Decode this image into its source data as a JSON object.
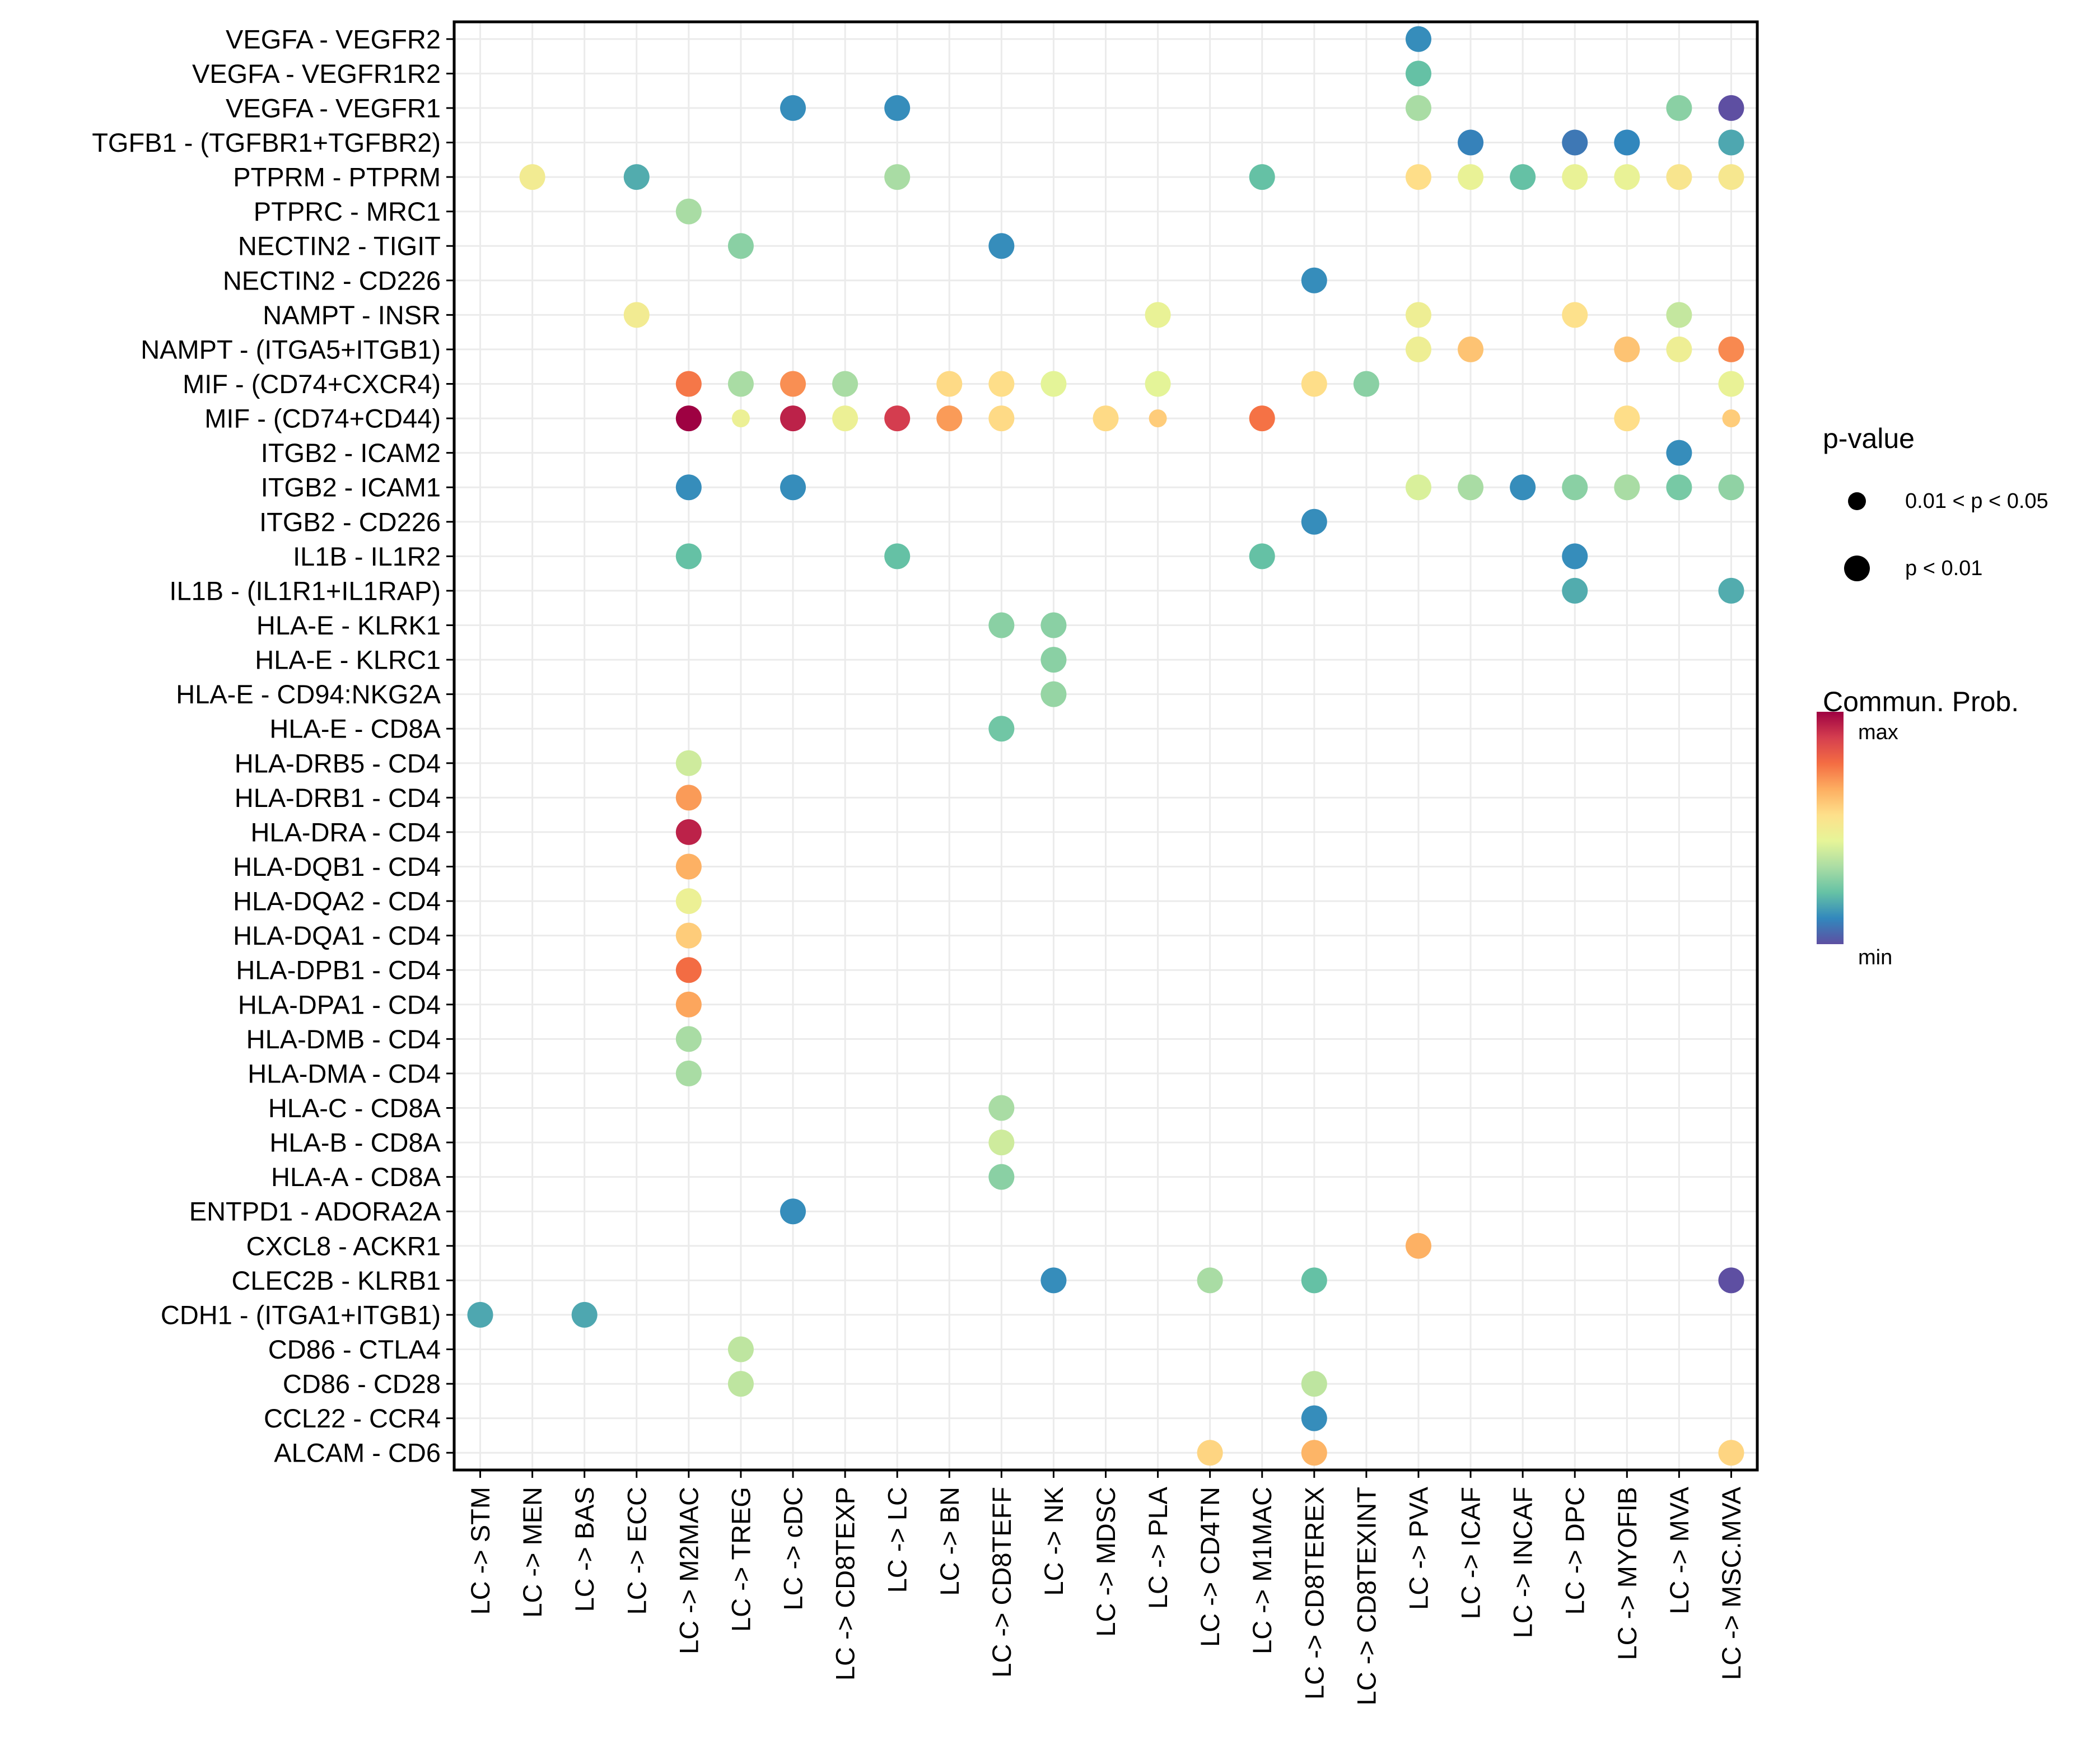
{
  "chart_data": {
    "type": "scatter",
    "subtype": "dot-matrix",
    "title": "",
    "xlabel": "",
    "ylabel": "",
    "grid": true,
    "x_categories": [
      "LC -> STM",
      "LC -> MEN",
      "LC -> BAS",
      "LC -> ECC",
      "LC -> M2MAC",
      "LC -> TREG",
      "LC -> cDC",
      "LC -> CD8TEXP",
      "LC -> LC",
      "LC -> BN",
      "LC -> CD8TEFF",
      "LC -> NK",
      "LC -> MDSC",
      "LC -> PLA",
      "LC -> CD4TN",
      "LC -> M1MAC",
      "LC -> CD8TEREX",
      "LC -> CD8TEXINT",
      "LC -> PVA",
      "LC -> ICAF",
      "LC -> INCAF",
      "LC -> DPC",
      "LC -> MYOFIB",
      "LC -> MVA",
      "LC -> MSC.MVA"
    ],
    "y_categories_top_to_bottom": [
      "VEGFA - VEGFR2",
      "VEGFA - VEGFR1R2",
      "VEGFA - VEGFR1",
      "TGFB1 - (TGFBR1+TGFBR2)",
      "PTPRM - PTPRM",
      "PTPRC - MRC1",
      "NECTIN2 - TIGIT",
      "NECTIN2 - CD226",
      "NAMPT - INSR",
      "NAMPT - (ITGA5+ITGB1)",
      "MIF - (CD74+CXCR4)",
      "MIF - (CD74+CD44)",
      "ITGB2 - ICAM2",
      "ITGB2 - ICAM1",
      "ITGB2 - CD226",
      "IL1B - IL1R2",
      "IL1B - (IL1R1+IL1RAP)",
      "HLA-E - KLRK1",
      "HLA-E - KLRC1",
      "HLA-E - CD94:NKG2A",
      "HLA-E - CD8A",
      "HLA-DRB5 - CD4",
      "HLA-DRB1 - CD4",
      "HLA-DRA - CD4",
      "HLA-DQB1 - CD4",
      "HLA-DQA2 - CD4",
      "HLA-DQA1 - CD4",
      "HLA-DPB1 - CD4",
      "HLA-DPA1 - CD4",
      "HLA-DMB - CD4",
      "HLA-DMA - CD4",
      "HLA-C - CD8A",
      "HLA-B - CD8A",
      "HLA-A - CD8A",
      "ENTPD1 - ADORA2A",
      "CXCL8 - ACKR1",
      "CLEC2B - KLRB1",
      "CDH1 - (ITGA1+ITGB1)",
      "CD86 - CTLA4",
      "CD86 - CD28",
      "CCL22 - CCR4",
      "ALCAM - CD6"
    ],
    "value_scale": "relative communication probability, 0 = min, 1 = max",
    "points": [
      {
        "y": "VEGFA - VEGFR2",
        "x": "LC -> PVA",
        "prob": 0.12,
        "p": "p < 0.01"
      },
      {
        "y": "VEGFA - VEGFR1R2",
        "x": "LC -> PVA",
        "prob": 0.22,
        "p": "p < 0.01"
      },
      {
        "y": "VEGFA - VEGFR1",
        "x": "LC -> cDC",
        "prob": 0.12,
        "p": "p < 0.01"
      },
      {
        "y": "VEGFA - VEGFR1",
        "x": "LC -> LC",
        "prob": 0.12,
        "p": "p < 0.01"
      },
      {
        "y": "VEGFA - VEGFR1",
        "x": "LC -> PVA",
        "prob": 0.33,
        "p": "p < 0.01"
      },
      {
        "y": "VEGFA - VEGFR1",
        "x": "LC -> MVA",
        "prob": 0.28,
        "p": "p < 0.01"
      },
      {
        "y": "VEGFA - VEGFR1",
        "x": "LC -> MSC.MVA",
        "prob": 0.0,
        "p": "p < 0.01"
      },
      {
        "y": "TGFB1 - (TGFBR1+TGFBR2)",
        "x": "LC -> ICAF",
        "prob": 0.1,
        "p": "p < 0.01"
      },
      {
        "y": "TGFB1 - (TGFBR1+TGFBR2)",
        "x": "LC -> DPC",
        "prob": 0.08,
        "p": "p < 0.01"
      },
      {
        "y": "TGFB1 - (TGFBR1+TGFBR2)",
        "x": "LC -> MYOFIB",
        "prob": 0.11,
        "p": "p < 0.01"
      },
      {
        "y": "TGFB1 - (TGFBR1+TGFBR2)",
        "x": "LC -> MSC.MVA",
        "prob": 0.17,
        "p": "p < 0.01"
      },
      {
        "y": "PTPRM - PTPRM",
        "x": "LC -> MEN",
        "prob": 0.5,
        "p": "p < 0.01"
      },
      {
        "y": "PTPRM - PTPRM",
        "x": "LC -> ECC",
        "prob": 0.18,
        "p": "p < 0.01"
      },
      {
        "y": "PTPRM - PTPRM",
        "x": "LC -> LC",
        "prob": 0.33,
        "p": "p < 0.01"
      },
      {
        "y": "PTPRM - PTPRM",
        "x": "LC -> M1MAC",
        "prob": 0.22,
        "p": "p < 0.01"
      },
      {
        "y": "PTPRM - PTPRM",
        "x": "LC -> PVA",
        "prob": 0.56,
        "p": "p < 0.01"
      },
      {
        "y": "PTPRM - PTPRM",
        "x": "LC -> ICAF",
        "prob": 0.46,
        "p": "p < 0.01"
      },
      {
        "y": "PTPRM - PTPRM",
        "x": "LC -> INCAF",
        "prob": 0.22,
        "p": "p < 0.01"
      },
      {
        "y": "PTPRM - PTPRM",
        "x": "LC -> DPC",
        "prob": 0.46,
        "p": "p < 0.01"
      },
      {
        "y": "PTPRM - PTPRM",
        "x": "LC -> MYOFIB",
        "prob": 0.46,
        "p": "p < 0.01"
      },
      {
        "y": "PTPRM - PTPRM",
        "x": "LC -> MVA",
        "prob": 0.53,
        "p": "p < 0.01"
      },
      {
        "y": "PTPRM - PTPRM",
        "x": "LC -> MSC.MVA",
        "prob": 0.52,
        "p": "p < 0.01"
      },
      {
        "y": "PTPRC - MRC1",
        "x": "LC -> M2MAC",
        "prob": 0.33,
        "p": "p < 0.01"
      },
      {
        "y": "NECTIN2 - TIGIT",
        "x": "LC -> TREG",
        "prob": 0.28,
        "p": "p < 0.01"
      },
      {
        "y": "NECTIN2 - TIGIT",
        "x": "LC -> CD8TEFF",
        "prob": 0.12,
        "p": "p < 0.01"
      },
      {
        "y": "NECTIN2 - CD226",
        "x": "LC -> CD8TEREX",
        "prob": 0.12,
        "p": "p < 0.01"
      },
      {
        "y": "NAMPT - INSR",
        "x": "LC -> ECC",
        "prob": 0.5,
        "p": "p < 0.01"
      },
      {
        "y": "NAMPT - INSR",
        "x": "LC -> PLA",
        "prob": 0.46,
        "p": "p < 0.01"
      },
      {
        "y": "NAMPT - INSR",
        "x": "LC -> PVA",
        "prob": 0.48,
        "p": "p < 0.01"
      },
      {
        "y": "NAMPT - INSR",
        "x": "LC -> DPC",
        "prob": 0.55,
        "p": "p < 0.01"
      },
      {
        "y": "NAMPT - INSR",
        "x": "LC -> MVA",
        "prob": 0.38,
        "p": "p < 0.01"
      },
      {
        "y": "NAMPT - (ITGA5+ITGB1)",
        "x": "LC -> PVA",
        "prob": 0.48,
        "p": "p < 0.01"
      },
      {
        "y": "NAMPT - (ITGA5+ITGB1)",
        "x": "LC -> ICAF",
        "prob": 0.62,
        "p": "p < 0.01"
      },
      {
        "y": "NAMPT - (ITGA5+ITGB1)",
        "x": "LC -> MYOFIB",
        "prob": 0.62,
        "p": "p < 0.01"
      },
      {
        "y": "NAMPT - (ITGA5+ITGB1)",
        "x": "LC -> MVA",
        "prob": 0.48,
        "p": "p < 0.01"
      },
      {
        "y": "NAMPT - (ITGA5+ITGB1)",
        "x": "LC -> MSC.MVA",
        "prob": 0.73,
        "p": "p < 0.01"
      },
      {
        "y": "MIF - (CD74+CXCR4)",
        "x": "LC -> M2MAC",
        "prob": 0.76,
        "p": "p < 0.01"
      },
      {
        "y": "MIF - (CD74+CXCR4)",
        "x": "LC -> TREG",
        "prob": 0.33,
        "p": "p < 0.01"
      },
      {
        "y": "MIF - (CD74+CXCR4)",
        "x": "LC -> cDC",
        "prob": 0.72,
        "p": "p < 0.01"
      },
      {
        "y": "MIF - (CD74+CXCR4)",
        "x": "LC -> CD8TEXP",
        "prob": 0.33,
        "p": "p < 0.01"
      },
      {
        "y": "MIF - (CD74+CXCR4)",
        "x": "LC -> BN",
        "prob": 0.57,
        "p": "p < 0.01"
      },
      {
        "y": "MIF - (CD74+CXCR4)",
        "x": "LC -> CD8TEFF",
        "prob": 0.56,
        "p": "p < 0.01"
      },
      {
        "y": "MIF - (CD74+CXCR4)",
        "x": "LC -> NK",
        "prob": 0.44,
        "p": "p < 0.01"
      },
      {
        "y": "MIF - (CD74+CXCR4)",
        "x": "LC -> PLA",
        "prob": 0.44,
        "p": "p < 0.01"
      },
      {
        "y": "MIF - (CD74+CXCR4)",
        "x": "LC -> CD8TEREX",
        "prob": 0.56,
        "p": "p < 0.01"
      },
      {
        "y": "MIF - (CD74+CXCR4)",
        "x": "LC -> CD8TEXINT",
        "prob": 0.28,
        "p": "p < 0.01"
      },
      {
        "y": "MIF - (CD74+CXCR4)",
        "x": "LC -> MSC.MVA",
        "prob": 0.46,
        "p": "p < 0.01"
      },
      {
        "y": "MIF - (CD74+CD44)",
        "x": "LC -> M2MAC",
        "prob": 1.0,
        "p": "p < 0.01"
      },
      {
        "y": "MIF - (CD74+CD44)",
        "x": "LC -> TREG",
        "prob": 0.47,
        "p": "0.01 < p < 0.05"
      },
      {
        "y": "MIF - (CD74+CD44)",
        "x": "LC -> cDC",
        "prob": 0.94,
        "p": "p < 0.01"
      },
      {
        "y": "MIF - (CD74+CD44)",
        "x": "LC -> CD8TEXP",
        "prob": 0.47,
        "p": "p < 0.01"
      },
      {
        "y": "MIF - (CD74+CD44)",
        "x": "LC -> LC",
        "prob": 0.89,
        "p": "p < 0.01"
      },
      {
        "y": "MIF - (CD74+CD44)",
        "x": "LC -> BN",
        "prob": 0.7,
        "p": "p < 0.01"
      },
      {
        "y": "MIF - (CD74+CD44)",
        "x": "LC -> CD8TEFF",
        "prob": 0.57,
        "p": "p < 0.01"
      },
      {
        "y": "MIF - (CD74+CD44)",
        "x": "LC -> MDSC",
        "prob": 0.57,
        "p": "p < 0.01"
      },
      {
        "y": "MIF - (CD74+CD44)",
        "x": "LC -> PLA",
        "prob": 0.6,
        "p": "0.01 < p < 0.05"
      },
      {
        "y": "MIF - (CD74+CD44)",
        "x": "LC -> M1MAC",
        "prob": 0.77,
        "p": "p < 0.01"
      },
      {
        "y": "MIF - (CD74+CD44)",
        "x": "LC -> MYOFIB",
        "prob": 0.56,
        "p": "p < 0.01"
      },
      {
        "y": "MIF - (CD74+CD44)",
        "x": "LC -> MSC.MVA",
        "prob": 0.6,
        "p": "0.01 < p < 0.05"
      },
      {
        "y": "ITGB2 - ICAM2",
        "x": "LC -> MVA",
        "prob": 0.12,
        "p": "p < 0.01"
      },
      {
        "y": "ITGB2 - ICAM1",
        "x": "LC -> M2MAC",
        "prob": 0.12,
        "p": "p < 0.01"
      },
      {
        "y": "ITGB2 - ICAM1",
        "x": "LC -> cDC",
        "prob": 0.12,
        "p": "p < 0.01"
      },
      {
        "y": "ITGB2 - ICAM1",
        "x": "LC -> PVA",
        "prob": 0.42,
        "p": "p < 0.01"
      },
      {
        "y": "ITGB2 - ICAM1",
        "x": "LC -> ICAF",
        "prob": 0.33,
        "p": "p < 0.01"
      },
      {
        "y": "ITGB2 - ICAM1",
        "x": "LC -> INCAF",
        "prob": 0.12,
        "p": "p < 0.01"
      },
      {
        "y": "ITGB2 - ICAM1",
        "x": "LC -> DPC",
        "prob": 0.28,
        "p": "p < 0.01"
      },
      {
        "y": "ITGB2 - ICAM1",
        "x": "LC -> MYOFIB",
        "prob": 0.33,
        "p": "p < 0.01"
      },
      {
        "y": "ITGB2 - ICAM1",
        "x": "LC -> MVA",
        "prob": 0.25,
        "p": "p < 0.01"
      },
      {
        "y": "ITGB2 - ICAM1",
        "x": "LC -> MSC.MVA",
        "prob": 0.29,
        "p": "p < 0.01"
      },
      {
        "y": "ITGB2 - CD226",
        "x": "LC -> CD8TEREX",
        "prob": 0.12,
        "p": "p < 0.01"
      },
      {
        "y": "IL1B - IL1R2",
        "x": "LC -> M2MAC",
        "prob": 0.22,
        "p": "p < 0.01"
      },
      {
        "y": "IL1B - IL1R2",
        "x": "LC -> LC",
        "prob": 0.22,
        "p": "p < 0.01"
      },
      {
        "y": "IL1B - IL1R2",
        "x": "LC -> M1MAC",
        "prob": 0.22,
        "p": "p < 0.01"
      },
      {
        "y": "IL1B - IL1R2",
        "x": "LC -> DPC",
        "prob": 0.12,
        "p": "p < 0.01"
      },
      {
        "y": "IL1B - (IL1R1+IL1RAP)",
        "x": "LC -> DPC",
        "prob": 0.18,
        "p": "p < 0.01"
      },
      {
        "y": "IL1B - (IL1R1+IL1RAP)",
        "x": "LC -> MSC.MVA",
        "prob": 0.18,
        "p": "p < 0.01"
      },
      {
        "y": "HLA-E - KLRK1",
        "x": "LC -> CD8TEFF",
        "prob": 0.28,
        "p": "p < 0.01"
      },
      {
        "y": "HLA-E - KLRK1",
        "x": "LC -> NK",
        "prob": 0.28,
        "p": "p < 0.01"
      },
      {
        "y": "HLA-E - KLRC1",
        "x": "LC -> NK",
        "prob": 0.28,
        "p": "p < 0.01"
      },
      {
        "y": "HLA-E - CD94:NKG2A",
        "x": "LC -> NK",
        "prob": 0.3,
        "p": "p < 0.01"
      },
      {
        "y": "HLA-E - CD8A",
        "x": "LC -> CD8TEFF",
        "prob": 0.24,
        "p": "p < 0.01"
      },
      {
        "y": "HLA-DRB5 - CD4",
        "x": "LC -> M2MAC",
        "prob": 0.4,
        "p": "p < 0.01"
      },
      {
        "y": "HLA-DRB1 - CD4",
        "x": "LC -> M2MAC",
        "prob": 0.7,
        "p": "p < 0.01"
      },
      {
        "y": "HLA-DRA - CD4",
        "x": "LC -> M2MAC",
        "prob": 0.94,
        "p": "p < 0.01"
      },
      {
        "y": "HLA-DQB1 - CD4",
        "x": "LC -> M2MAC",
        "prob": 0.66,
        "p": "p < 0.01"
      },
      {
        "y": "HLA-DQA2 - CD4",
        "x": "LC -> M2MAC",
        "prob": 0.47,
        "p": "p < 0.01"
      },
      {
        "y": "HLA-DQA1 - CD4",
        "x": "LC -> M2MAC",
        "prob": 0.6,
        "p": "p < 0.01"
      },
      {
        "y": "HLA-DPB1 - CD4",
        "x": "LC -> M2MAC",
        "prob": 0.78,
        "p": "p < 0.01"
      },
      {
        "y": "HLA-DPA1 - CD4",
        "x": "LC -> M2MAC",
        "prob": 0.68,
        "p": "p < 0.01"
      },
      {
        "y": "HLA-DMB - CD4",
        "x": "LC -> M2MAC",
        "prob": 0.33,
        "p": "p < 0.01"
      },
      {
        "y": "HLA-DMA - CD4",
        "x": "LC -> M2MAC",
        "prob": 0.33,
        "p": "p < 0.01"
      },
      {
        "y": "HLA-C - CD8A",
        "x": "LC -> CD8TEFF",
        "prob": 0.33,
        "p": "p < 0.01"
      },
      {
        "y": "HLA-B - CD8A",
        "x": "LC -> CD8TEFF",
        "prob": 0.4,
        "p": "p < 0.01"
      },
      {
        "y": "HLA-A - CD8A",
        "x": "LC -> CD8TEFF",
        "prob": 0.28,
        "p": "p < 0.01"
      },
      {
        "y": "ENTPD1 - ADORA2A",
        "x": "LC -> cDC",
        "prob": 0.12,
        "p": "p < 0.01"
      },
      {
        "y": "CXCL8 - ACKR1",
        "x": "LC -> PVA",
        "prob": 0.66,
        "p": "p < 0.01"
      },
      {
        "y": "CLEC2B - KLRB1",
        "x": "LC -> NK",
        "prob": 0.12,
        "p": "p < 0.01"
      },
      {
        "y": "CLEC2B - KLRB1",
        "x": "LC -> CD4TN",
        "prob": 0.33,
        "p": "p < 0.01"
      },
      {
        "y": "CLEC2B - KLRB1",
        "x": "LC -> CD8TEREX",
        "prob": 0.22,
        "p": "p < 0.01"
      },
      {
        "y": "CLEC2B - KLRB1",
        "x": "LC -> MSC.MVA",
        "prob": 0.0,
        "p": "p < 0.01"
      },
      {
        "y": "CDH1 - (ITGA1+ITGB1)",
        "x": "LC -> STM",
        "prob": 0.17,
        "p": "p < 0.01"
      },
      {
        "y": "CDH1 - (ITGA1+ITGB1)",
        "x": "LC -> BAS",
        "prob": 0.17,
        "p": "p < 0.01"
      },
      {
        "y": "CD86 - CTLA4",
        "x": "LC -> TREG",
        "prob": 0.37,
        "p": "p < 0.01"
      },
      {
        "y": "CD86 - CD28",
        "x": "LC -> TREG",
        "prob": 0.37,
        "p": "p < 0.01"
      },
      {
        "y": "CD86 - CD28",
        "x": "LC -> CD8TEREX",
        "prob": 0.37,
        "p": "p < 0.01"
      },
      {
        "y": "CCL22 - CCR4",
        "x": "LC -> CD8TEREX",
        "prob": 0.12,
        "p": "p < 0.01"
      },
      {
        "y": "ALCAM - CD6",
        "x": "LC -> CD4TN",
        "prob": 0.58,
        "p": "p < 0.01"
      },
      {
        "y": "ALCAM - CD6",
        "x": "LC -> CD8TEREX",
        "prob": 0.65,
        "p": "p < 0.01"
      },
      {
        "y": "ALCAM - CD6",
        "x": "LC -> MSC.MVA",
        "prob": 0.58,
        "p": "p < 0.01"
      }
    ],
    "legend": {
      "size_title": "p-value",
      "size_entries": [
        {
          "label": "0.01 < p < 0.05",
          "key": "0.01 < p < 0.05"
        },
        {
          "label": "p < 0.01",
          "key": "p < 0.01"
        }
      ],
      "color_title": "Commun. Prob.",
      "color_max_label": "max",
      "color_min_label": "min",
      "color_stops": [
        "#5E4FA2",
        "#3288BD",
        "#66C2A5",
        "#ABDDA4",
        "#E6F598",
        "#FEE08B",
        "#FDAE61",
        "#F46D43",
        "#D53E4F",
        "#9E0142"
      ],
      "placement": "right"
    }
  }
}
